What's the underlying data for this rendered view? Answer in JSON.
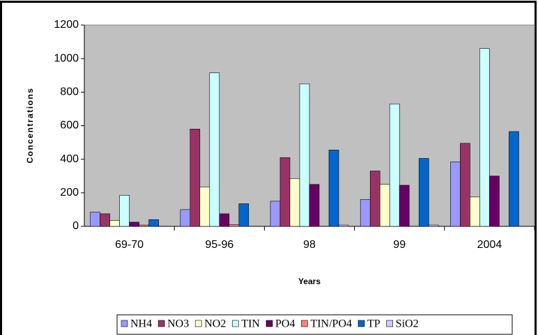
{
  "chart_data": {
    "type": "bar",
    "x_label": "Years",
    "y_label": "Concentrations",
    "categories": [
      "69-70",
      "95-96",
      "98",
      "99",
      "2004"
    ],
    "series": [
      {
        "name": "NH4",
        "color": "#9999ff",
        "values": [
          85,
          100,
          150,
          160,
          385
        ]
      },
      {
        "name": "NO3",
        "color": "#993366",
        "values": [
          75,
          580,
          410,
          330,
          495
        ]
      },
      {
        "name": "NO2",
        "color": "#ffffcc",
        "values": [
          35,
          235,
          285,
          250,
          175
        ]
      },
      {
        "name": "TIN",
        "color": "#ccffff",
        "values": [
          185,
          915,
          850,
          730,
          1060
        ]
      },
      {
        "name": "PO4",
        "color": "#660066",
        "values": [
          25,
          75,
          250,
          245,
          300
        ]
      },
      {
        "name": "TIN/PO4",
        "color": "#ff8080",
        "values": [
          8,
          10,
          null,
          null,
          null
        ]
      },
      {
        "name": "TP",
        "color": "#0066cc",
        "values": [
          40,
          135,
          455,
          405,
          565
        ]
      },
      {
        "name": "SiO2",
        "color": "#ccccff",
        "values": [
          null,
          null,
          8,
          8,
          null
        ]
      }
    ],
    "ylim": [
      0,
      1200
    ],
    "yticks": [
      0,
      200,
      400,
      600,
      800,
      1000,
      1200
    ],
    "grid": false
  }
}
